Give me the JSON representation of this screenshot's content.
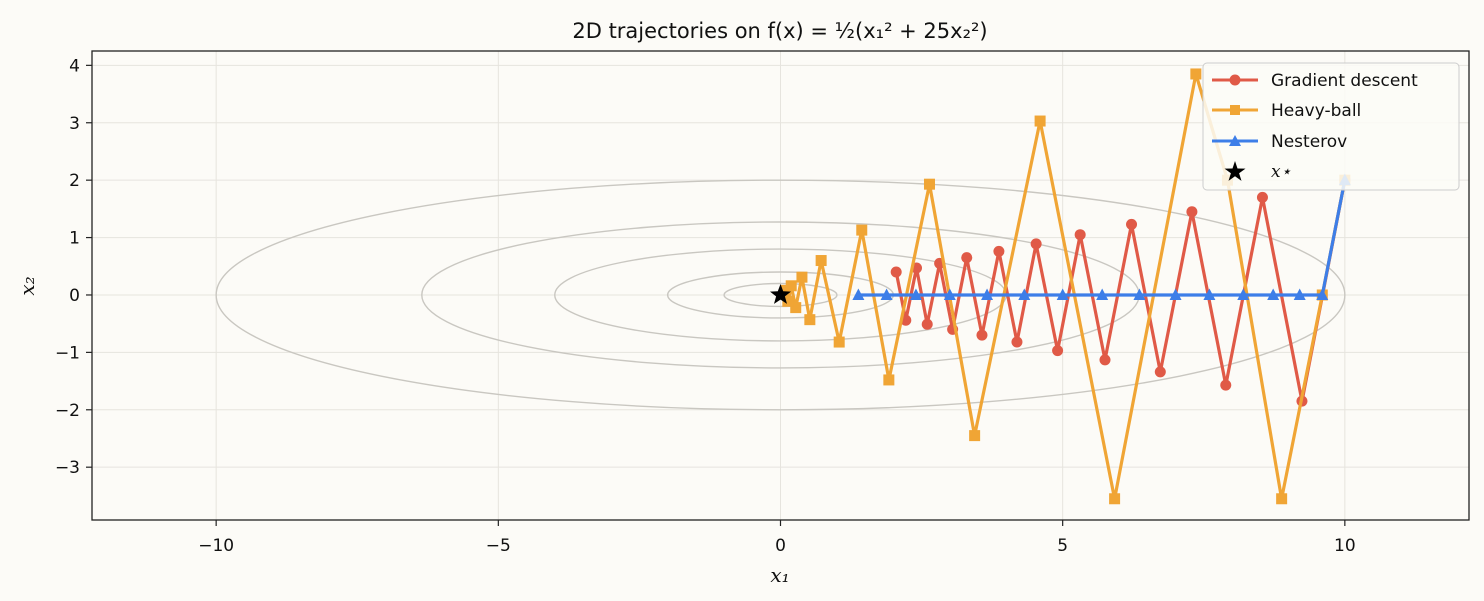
{
  "chart_data": {
    "type": "line",
    "title": "2D trajectories on f(x) = ½(x₁² + 25x₂²)",
    "xlabel": "x₁",
    "ylabel": "x₂",
    "xlim": [
      -12.2,
      12.2
    ],
    "ylim": [
      -3.92,
      4.25
    ],
    "xticks": [
      -10,
      -5,
      0,
      5,
      10
    ],
    "yticks": [
      -3,
      -2,
      -1,
      0,
      1,
      2,
      3,
      4
    ],
    "grid": true,
    "legend_position": "upper right",
    "contour_levels": [
      0.5,
      2,
      8,
      20.2,
      50
    ],
    "series": [
      {
        "name": "Gradient descent",
        "color": "#e05a47",
        "marker": "circle",
        "x": [
          10,
          9.24,
          8.54,
          7.89,
          7.29,
          6.73,
          6.22,
          5.75,
          5.31,
          4.91,
          4.53,
          4.19,
          3.87,
          3.57,
          3.3,
          3.05,
          2.82,
          2.6,
          2.41,
          2.22,
          2.05
        ],
        "y": [
          2.0,
          -1.85,
          1.7,
          -1.57,
          1.45,
          -1.34,
          1.23,
          -1.13,
          1.05,
          -0.97,
          0.89,
          -0.82,
          0.76,
          -0.7,
          0.65,
          -0.6,
          0.55,
          -0.51,
          0.47,
          -0.44,
          0.4
        ]
      },
      {
        "name": "Heavy-ball",
        "color": "#f0a535",
        "marker": "square",
        "x": [
          10,
          9.6,
          8.88,
          7.92,
          7.36,
          5.92,
          4.6,
          3.44,
          2.64,
          1.92,
          1.44,
          1.04,
          0.72,
          0.52,
          0.38,
          0.27,
          0.19,
          0.13,
          0.09
        ],
        "y": [
          2.0,
          0.0,
          -3.55,
          2.0,
          3.85,
          -3.55,
          3.03,
          -2.45,
          1.93,
          -1.48,
          1.13,
          -0.82,
          0.6,
          -0.43,
          0.31,
          -0.22,
          0.16,
          -0.11,
          0.08
        ]
      },
      {
        "name": "Nesterov",
        "color": "#3d7ee8",
        "marker": "triangle",
        "x": [
          10,
          9.6,
          9.2,
          8.73,
          8.2,
          7.6,
          7.0,
          6.36,
          5.7,
          5.0,
          4.32,
          3.66,
          3.0,
          2.4,
          1.88,
          1.38
        ],
        "y": [
          2.0,
          0.0,
          0.0,
          0.0,
          0.0,
          0.0,
          0.0,
          0.0,
          0.0,
          0.0,
          0.0,
          0.0,
          0.0,
          0.0,
          0.0,
          0.0
        ]
      }
    ],
    "optimum": {
      "name": "x⋆",
      "x": 0,
      "y": 0,
      "marker": "star",
      "color": "#000000"
    }
  }
}
